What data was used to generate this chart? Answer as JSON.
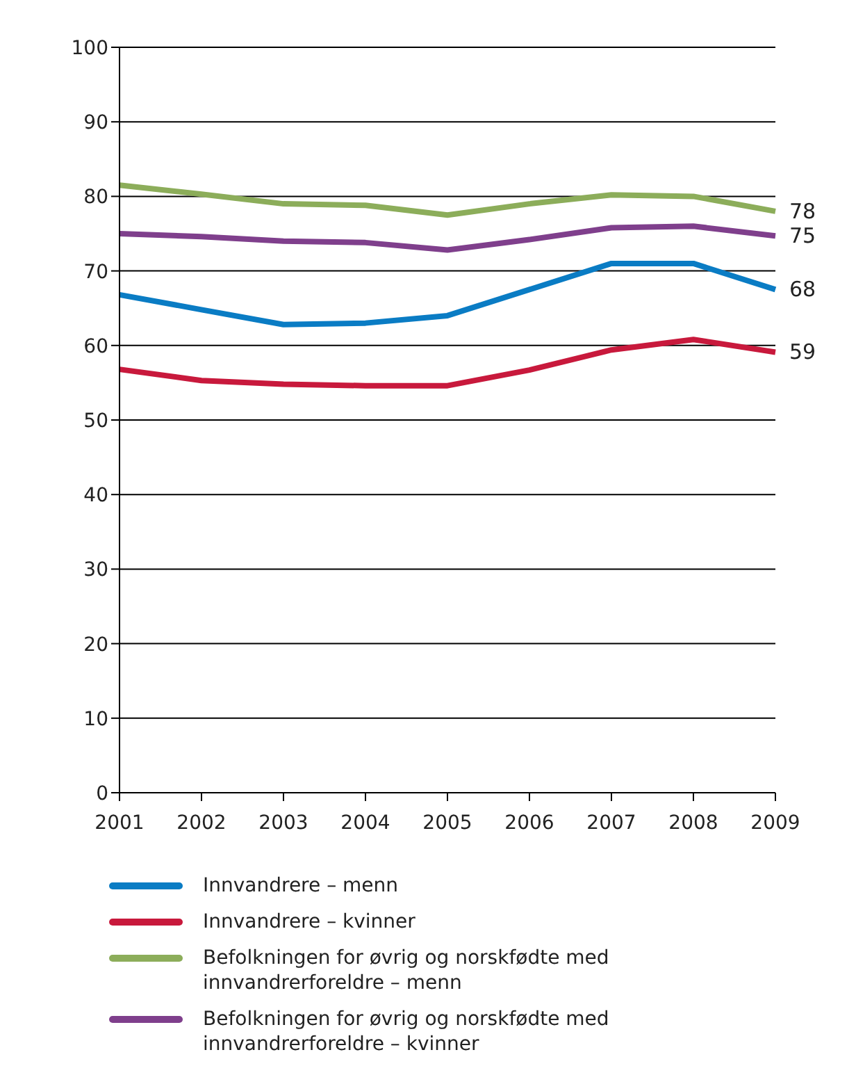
{
  "chart_data": {
    "type": "line",
    "categories": [
      "2001",
      "2002",
      "2003",
      "2004",
      "2005",
      "2006",
      "2007",
      "2008",
      "2009"
    ],
    "series": [
      {
        "name": "Innvandrere – menn",
        "color": "#0a7cc4",
        "values": [
          66.8,
          64.8,
          62.8,
          63,
          64,
          67.5,
          71,
          71,
          67.5
        ],
        "value_labels": [
          null,
          null,
          null,
          null,
          null,
          null,
          null,
          null,
          "68"
        ]
      },
      {
        "name": "Innvandrere – kvinner",
        "color": "#c8193c",
        "values": [
          56.8,
          55.3,
          54.8,
          54.6,
          54.6,
          56.7,
          59.4,
          60.8,
          59.1
        ],
        "value_labels": [
          null,
          null,
          null,
          null,
          null,
          null,
          null,
          null,
          "59"
        ]
      },
      {
        "name": "Befolkningen for øvrig og norskfødte med innvandrerforeldre – menn",
        "color": "#8cad5a",
        "values": [
          81.5,
          80.3,
          79,
          78.8,
          77.5,
          79,
          80.2,
          80,
          78
        ],
        "value_labels": [
          null,
          null,
          null,
          null,
          null,
          null,
          null,
          null,
          "78"
        ]
      },
      {
        "name": "Befolkningen for øvrig og norskfødte med innvandrerforeldre – kvinner",
        "color": "#7f3f8c",
        "values": [
          75,
          74.6,
          74,
          73.8,
          72.8,
          74.2,
          75.8,
          76,
          74.7
        ],
        "value_labels": [
          null,
          null,
          null,
          null,
          null,
          null,
          null,
          null,
          "75"
        ]
      }
    ],
    "ylim": [
      0,
      100
    ],
    "yticks": [
      0,
      10,
      20,
      30,
      40,
      50,
      60,
      70,
      80,
      90,
      100
    ],
    "grid": "y",
    "legend": "bottom",
    "marker": "none",
    "line_style": "solid"
  }
}
